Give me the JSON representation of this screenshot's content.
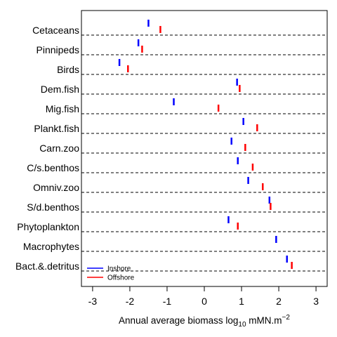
{
  "chart_data": {
    "type": "dot",
    "categories": [
      "Cetaceans",
      "Pinnipeds",
      "Birds",
      "Dem.fish",
      "Mig.fish",
      "Plankt.fish",
      "Carn.zoo",
      "C/s.benthos",
      "Omniv.zoo",
      "S/d.benthos",
      "Phytoplankton",
      "Macrophytes",
      "Bact.&.detritus"
    ],
    "series": [
      {
        "name": "Inshore",
        "color": "#0000ff",
        "values": [
          -1.5,
          -1.77,
          -2.28,
          0.88,
          -0.82,
          1.05,
          0.73,
          0.9,
          1.18,
          1.75,
          0.65,
          1.93,
          2.22
        ]
      },
      {
        "name": "Offshore",
        "color": "#ff0000",
        "values": [
          -1.18,
          -1.67,
          -2.05,
          0.95,
          0.38,
          1.42,
          1.1,
          1.3,
          1.57,
          1.78,
          0.9,
          null,
          2.35
        ]
      }
    ],
    "xlabel": {
      "main": "Annual average biomass log",
      "sub": "10",
      "unit": " mMN.m",
      "sup": "−2"
    },
    "xlim": [
      -3.3,
      3.3
    ],
    "xticks": [
      -3,
      -2,
      -1,
      0,
      1,
      2,
      3
    ],
    "legend_position": "bottom-left",
    "row_separators": "dashed"
  }
}
